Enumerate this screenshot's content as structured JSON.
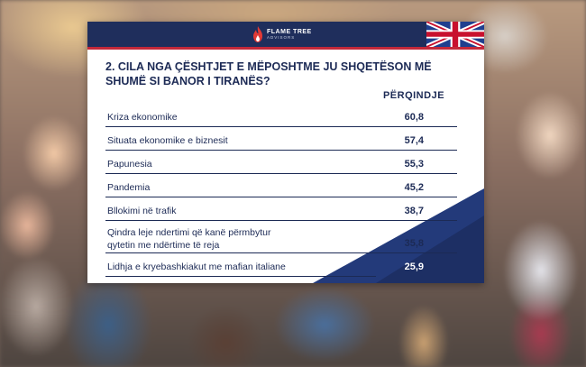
{
  "header": {
    "brand_name": "FLAME TREE",
    "brand_sub": "ADVISORS",
    "flag_icon": "uk-flag-icon",
    "colors": {
      "navy": "#1f2e5c",
      "red": "#c4283a"
    }
  },
  "survey": {
    "question_line1": "2. CILA NGA ÇËSHTJET E MËPOSHTME JU SHQETËSON MË",
    "question_line2": "SHUMË SI BANOR I TIRANËS?",
    "column_header": "PËRQINDJE",
    "rows": [
      {
        "label": "Kriza ekonomike",
        "value": "60,8"
      },
      {
        "label": "Situata ekonomike e biznesit",
        "value": "57,4"
      },
      {
        "label": "Papunesia",
        "value": "55,3"
      },
      {
        "label": "Pandemia",
        "value": "45,2"
      },
      {
        "label": "Bllokimi në trafik",
        "value": "38,7"
      },
      {
        "label_line1": "Qindra leje ndertimi që kanë përmbytur",
        "label_line2": "qytetin me ndërtime të reja",
        "value": "35,8"
      },
      {
        "label": "Lidhja e kryebashkiakut me mafian italiane",
        "value": "25,9"
      }
    ]
  }
}
